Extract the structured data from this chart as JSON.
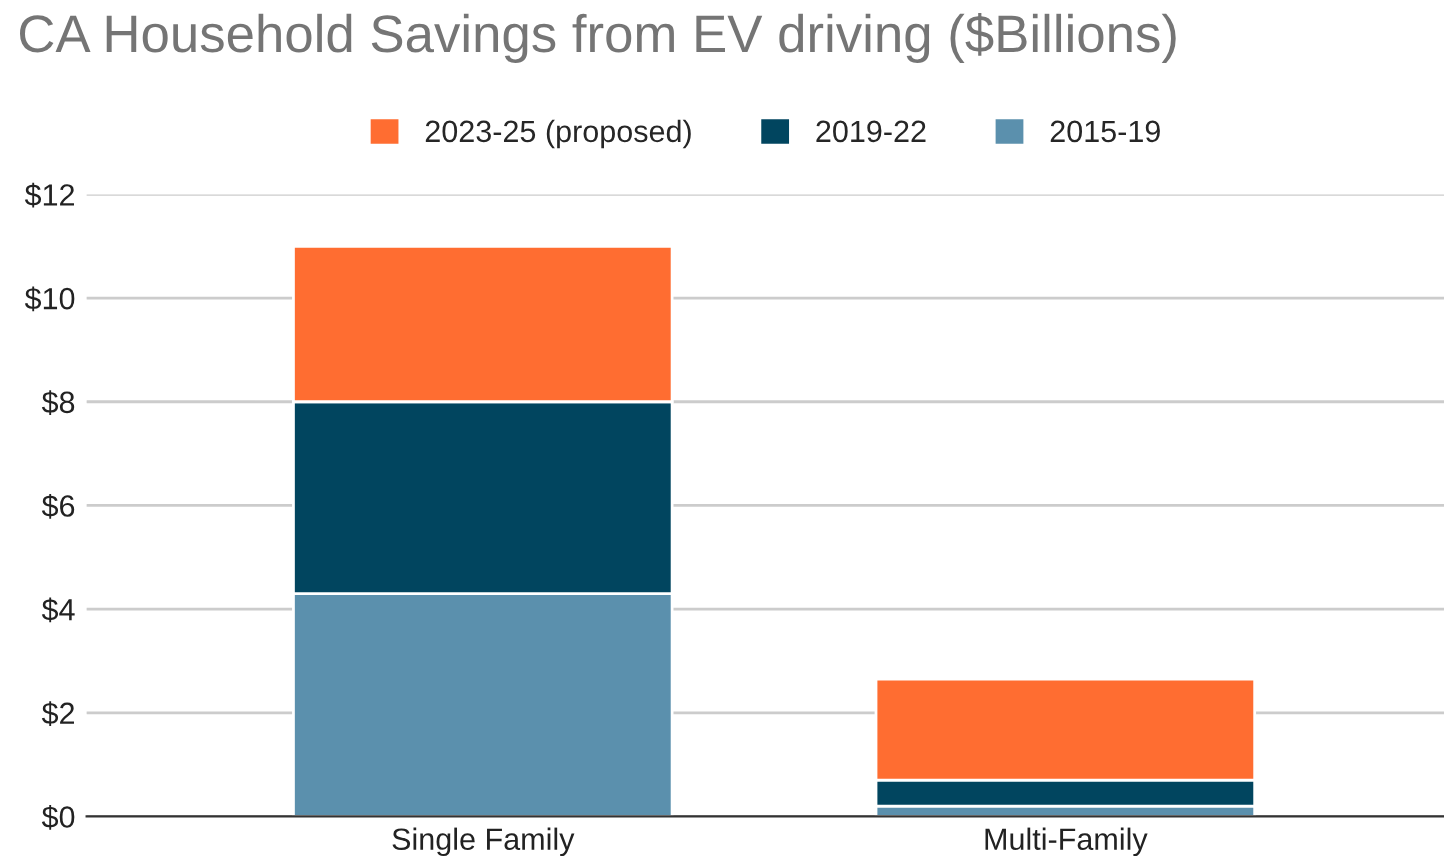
{
  "chart_data": {
    "type": "bar",
    "title": "CA Household Savings from EV driving ($Billions)",
    "categories": [
      "Single Family",
      "Multi-Family"
    ],
    "stacked": true,
    "series": [
      {
        "name": "2015-19",
        "color": "#5b90ad",
        "values": [
          4.3,
          0.2
        ]
      },
      {
        "name": "2019-22",
        "color": "#01455f",
        "values": [
          3.7,
          0.5
        ]
      },
      {
        "name": "2023-25 (proposed)",
        "color": "#ff6d31",
        "values": [
          3.0,
          1.95
        ]
      }
    ],
    "ylim": [
      0,
      12
    ],
    "yticks": [
      {
        "value": 0,
        "label": "$0"
      },
      {
        "value": 2,
        "label": "$2"
      },
      {
        "value": 4,
        "label": "$4"
      },
      {
        "value": 6,
        "label": "$6"
      },
      {
        "value": 8,
        "label": "$8"
      },
      {
        "value": 10,
        "label": "$10"
      },
      {
        "value": 12,
        "label": "$12"
      }
    ],
    "grid": "y",
    "legend": "top"
  }
}
